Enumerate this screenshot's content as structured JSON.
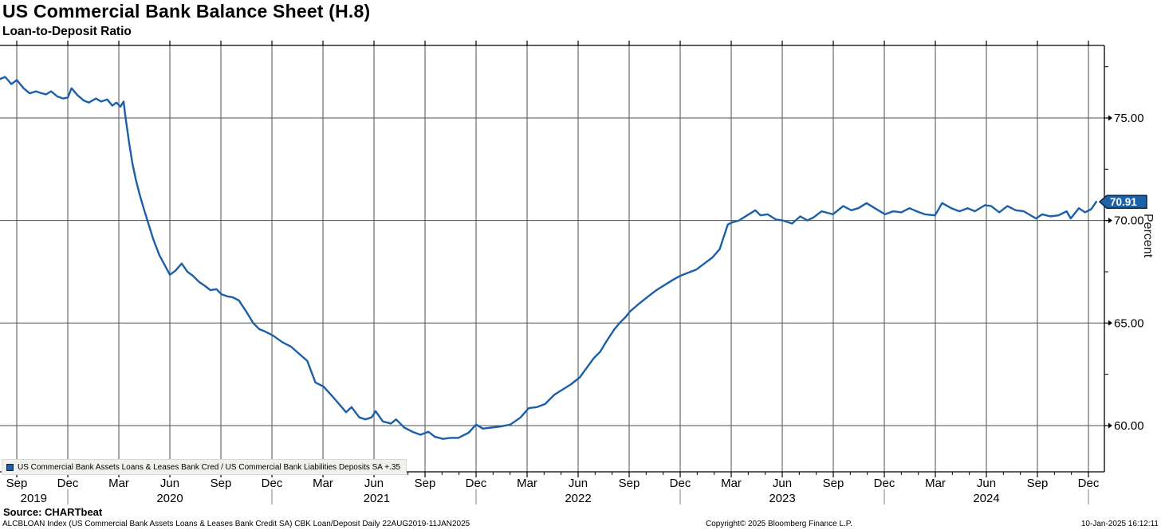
{
  "header": {
    "title": "US Commercial Bank Balance Sheet (H.8)",
    "subtitle": "Loan-to-Deposit Ratio"
  },
  "legend": {
    "text": "US Commercial Bank Assets Loans & Leases Bank Cred / US Commercial Bank Liabilities Deposits SA +.35"
  },
  "y_axis": {
    "title": "Percent",
    "major": [
      {
        "v": 75,
        "label": "75.00"
      },
      {
        "v": 70,
        "label": "70.00"
      },
      {
        "v": 65,
        "label": "65.00"
      },
      {
        "v": 60,
        "label": "60.00"
      }
    ],
    "minor": [
      77.5,
      72.5,
      67.5,
      62.5
    ],
    "last_value": {
      "v": 70.91,
      "label": "70.91"
    }
  },
  "x_axis": {
    "quarter_ticks": [
      {
        "t": 2019.6667,
        "label": "Sep",
        "year_end": false
      },
      {
        "t": 2019.9167,
        "label": "Dec",
        "year_end": true
      },
      {
        "t": 2020.1667,
        "label": "Mar",
        "year_end": false
      },
      {
        "t": 2020.4167,
        "label": "Jun",
        "year_end": false
      },
      {
        "t": 2020.6667,
        "label": "Sep",
        "year_end": false
      },
      {
        "t": 2020.9167,
        "label": "Dec",
        "year_end": true
      },
      {
        "t": 2021.1667,
        "label": "Mar",
        "year_end": false
      },
      {
        "t": 2021.4167,
        "label": "Jun",
        "year_end": false
      },
      {
        "t": 2021.6667,
        "label": "Sep",
        "year_end": false
      },
      {
        "t": 2021.9167,
        "label": "Dec",
        "year_end": true
      },
      {
        "t": 2022.1667,
        "label": "Mar",
        "year_end": false
      },
      {
        "t": 2022.4167,
        "label": "Jun",
        "year_end": false
      },
      {
        "t": 2022.6667,
        "label": "Sep",
        "year_end": false
      },
      {
        "t": 2022.9167,
        "label": "Dec",
        "year_end": true
      },
      {
        "t": 2023.1667,
        "label": "Mar",
        "year_end": false
      },
      {
        "t": 2023.4167,
        "label": "Jun",
        "year_end": false
      },
      {
        "t": 2023.6667,
        "label": "Sep",
        "year_end": false
      },
      {
        "t": 2023.9167,
        "label": "Dec",
        "year_end": true
      },
      {
        "t": 2024.1667,
        "label": "Mar",
        "year_end": false
      },
      {
        "t": 2024.4167,
        "label": "Jun",
        "year_end": false
      },
      {
        "t": 2024.6667,
        "label": "Sep",
        "year_end": false
      },
      {
        "t": 2024.9167,
        "label": "Dec",
        "year_end": true
      }
    ],
    "year_labels": [
      {
        "t": 2019.75,
        "label": "2019"
      },
      {
        "t": 2020.4167,
        "label": "2020"
      },
      {
        "t": 2021.43,
        "label": "2021"
      },
      {
        "t": 2022.4167,
        "label": "2022"
      },
      {
        "t": 2023.4167,
        "label": "2023"
      },
      {
        "t": 2024.4167,
        "label": "2024"
      }
    ]
  },
  "footer": {
    "source": "Source: CHARTbeat",
    "note": "ALCBLOAN Index (US Commercial Bank Assets Loans & Leases Bank Credit SA) CBK Loan/Deposit  Daily 22AUG2019-11JAN2025",
    "copyright": "Copyright© 2025 Bloomberg Finance L.P.",
    "timestamp": "10-Jan-2025 16:12:11"
  },
  "colors": {
    "line": "#1a5fa8",
    "grid": "#4d4d4d",
    "axis": "#000000",
    "badge_fill": "#1d62a6",
    "badge_border": "#0a2540",
    "badge_text": "#ffffff",
    "year_divider": "#808080"
  },
  "chart_data": {
    "type": "line",
    "title": "US Commercial Bank Balance Sheet (H.8)",
    "subtitle": "Loan-to-Deposit Ratio",
    "series_name": "US Commercial Bank Assets Loans & Leases Bank Cred / US Commercial Bank Liabilities Deposits SA +.35",
    "ylabel": "Percent",
    "period_note": "Daily 22AUG2019-11JAN2025",
    "ylim": [
      57.8,
      78.6
    ],
    "grid": true,
    "legend_position": "bottom-left",
    "last_value": 70.91,
    "x_unit": "decimal_year",
    "points": [
      [
        2019.585,
        76.9
      ],
      [
        2019.61,
        77.0
      ],
      [
        2019.64,
        76.65
      ],
      [
        2019.667,
        76.85
      ],
      [
        2019.7,
        76.45
      ],
      [
        2019.73,
        76.2
      ],
      [
        2019.76,
        76.3
      ],
      [
        2019.79,
        76.2
      ],
      [
        2019.81,
        76.15
      ],
      [
        2019.835,
        76.3
      ],
      [
        2019.865,
        76.05
      ],
      [
        2019.895,
        75.95
      ],
      [
        2019.917,
        76.0
      ],
      [
        2019.935,
        76.45
      ],
      [
        2019.965,
        76.1
      ],
      [
        2019.995,
        75.85
      ],
      [
        2020.02,
        75.75
      ],
      [
        2020.055,
        75.95
      ],
      [
        2020.08,
        75.8
      ],
      [
        2020.11,
        75.9
      ],
      [
        2020.135,
        75.6
      ],
      [
        2020.155,
        75.75
      ],
      [
        2020.175,
        75.55
      ],
      [
        2020.19,
        75.8
      ],
      [
        2020.2,
        75.0
      ],
      [
        2020.217,
        73.8
      ],
      [
        2020.233,
        72.8
      ],
      [
        2020.25,
        72.0
      ],
      [
        2020.268,
        71.3
      ],
      [
        2020.288,
        70.6
      ],
      [
        2020.307,
        70.0
      ],
      [
        2020.335,
        69.1
      ],
      [
        2020.366,
        68.3
      ],
      [
        2020.393,
        67.8
      ],
      [
        2020.417,
        67.35
      ],
      [
        2020.444,
        67.55
      ],
      [
        2020.475,
        67.9
      ],
      [
        2020.503,
        67.5
      ],
      [
        2020.53,
        67.3
      ],
      [
        2020.56,
        67.0
      ],
      [
        2020.59,
        66.8
      ],
      [
        2020.615,
        66.6
      ],
      [
        2020.645,
        66.65
      ],
      [
        2020.67,
        66.4
      ],
      [
        2020.7,
        66.3
      ],
      [
        2020.725,
        66.25
      ],
      [
        2020.755,
        66.1
      ],
      [
        2020.795,
        65.5
      ],
      [
        2020.825,
        65.0
      ],
      [
        2020.855,
        64.7
      ],
      [
        2020.88,
        64.6
      ],
      [
        2020.92,
        64.4
      ],
      [
        2020.97,
        64.05
      ],
      [
        2021.01,
        63.85
      ],
      [
        2021.05,
        63.5
      ],
      [
        2021.09,
        63.15
      ],
      [
        2021.13,
        62.1
      ],
      [
        2021.17,
        61.9
      ],
      [
        2021.215,
        61.4
      ],
      [
        2021.25,
        61.0
      ],
      [
        2021.28,
        60.65
      ],
      [
        2021.307,
        60.9
      ],
      [
        2021.345,
        60.4
      ],
      [
        2021.375,
        60.3
      ],
      [
        2021.405,
        60.4
      ],
      [
        2021.425,
        60.7
      ],
      [
        2021.46,
        60.2
      ],
      [
        2021.5,
        60.1
      ],
      [
        2021.525,
        60.3
      ],
      [
        2021.565,
        59.9
      ],
      [
        2021.605,
        59.7
      ],
      [
        2021.645,
        59.55
      ],
      [
        2021.683,
        59.7
      ],
      [
        2021.715,
        59.45
      ],
      [
        2021.755,
        59.35
      ],
      [
        2021.79,
        59.4
      ],
      [
        2021.83,
        59.4
      ],
      [
        2021.88,
        59.65
      ],
      [
        2021.917,
        60.05
      ],
      [
        2021.95,
        59.85
      ],
      [
        2021.99,
        59.9
      ],
      [
        2022.035,
        59.95
      ],
      [
        2022.085,
        60.05
      ],
      [
        2022.135,
        60.4
      ],
      [
        2022.175,
        60.85
      ],
      [
        2022.215,
        60.9
      ],
      [
        2022.255,
        61.05
      ],
      [
        2022.3,
        61.5
      ],
      [
        2022.34,
        61.75
      ],
      [
        2022.38,
        62.0
      ],
      [
        2022.425,
        62.35
      ],
      [
        2022.465,
        62.9
      ],
      [
        2022.495,
        63.3
      ],
      [
        2022.525,
        63.6
      ],
      [
        2022.555,
        64.1
      ],
      [
        2022.595,
        64.7
      ],
      [
        2022.62,
        65.0
      ],
      [
        2022.65,
        65.3
      ],
      [
        2022.67,
        65.55
      ],
      [
        2022.71,
        65.9
      ],
      [
        2022.76,
        66.3
      ],
      [
        2022.8,
        66.6
      ],
      [
        2022.84,
        66.85
      ],
      [
        2022.88,
        67.1
      ],
      [
        2022.917,
        67.3
      ],
      [
        2022.955,
        67.45
      ],
      [
        2022.995,
        67.6
      ],
      [
        2023.035,
        67.9
      ],
      [
        2023.075,
        68.2
      ],
      [
        2023.11,
        68.6
      ],
      [
        2023.13,
        69.2
      ],
      [
        2023.15,
        69.8
      ],
      [
        2023.17,
        69.9
      ],
      [
        2023.205,
        70.0
      ],
      [
        2023.245,
        70.25
      ],
      [
        2023.285,
        70.5
      ],
      [
        2023.31,
        70.25
      ],
      [
        2023.345,
        70.3
      ],
      [
        2023.385,
        70.05
      ],
      [
        2023.42,
        70.0
      ],
      [
        2023.465,
        69.85
      ],
      [
        2023.505,
        70.2
      ],
      [
        2023.54,
        70.0
      ],
      [
        2023.57,
        70.15
      ],
      [
        2023.61,
        70.45
      ],
      [
        2023.665,
        70.3
      ],
      [
        2023.715,
        70.7
      ],
      [
        2023.755,
        70.5
      ],
      [
        2023.79,
        70.6
      ],
      [
        2023.83,
        70.85
      ],
      [
        2023.87,
        70.6
      ],
      [
        2023.92,
        70.3
      ],
      [
        2023.96,
        70.45
      ],
      [
        2024.0,
        70.4
      ],
      [
        2024.04,
        70.6
      ],
      [
        2024.075,
        70.45
      ],
      [
        2024.115,
        70.3
      ],
      [
        2024.165,
        70.25
      ],
      [
        2024.2,
        70.85
      ],
      [
        2024.245,
        70.6
      ],
      [
        2024.285,
        70.45
      ],
      [
        2024.325,
        70.6
      ],
      [
        2024.36,
        70.45
      ],
      [
        2024.41,
        70.75
      ],
      [
        2024.44,
        70.7
      ],
      [
        2024.48,
        70.4
      ],
      [
        2024.52,
        70.7
      ],
      [
        2024.56,
        70.5
      ],
      [
        2024.6,
        70.45
      ],
      [
        2024.66,
        70.1
      ],
      [
        2024.69,
        70.3
      ],
      [
        2024.73,
        70.2
      ],
      [
        2024.77,
        70.25
      ],
      [
        2024.81,
        70.45
      ],
      [
        2024.83,
        70.1
      ],
      [
        2024.87,
        70.6
      ],
      [
        2024.9,
        70.4
      ],
      [
        2024.93,
        70.55
      ],
      [
        2024.955,
        70.91
      ]
    ]
  }
}
